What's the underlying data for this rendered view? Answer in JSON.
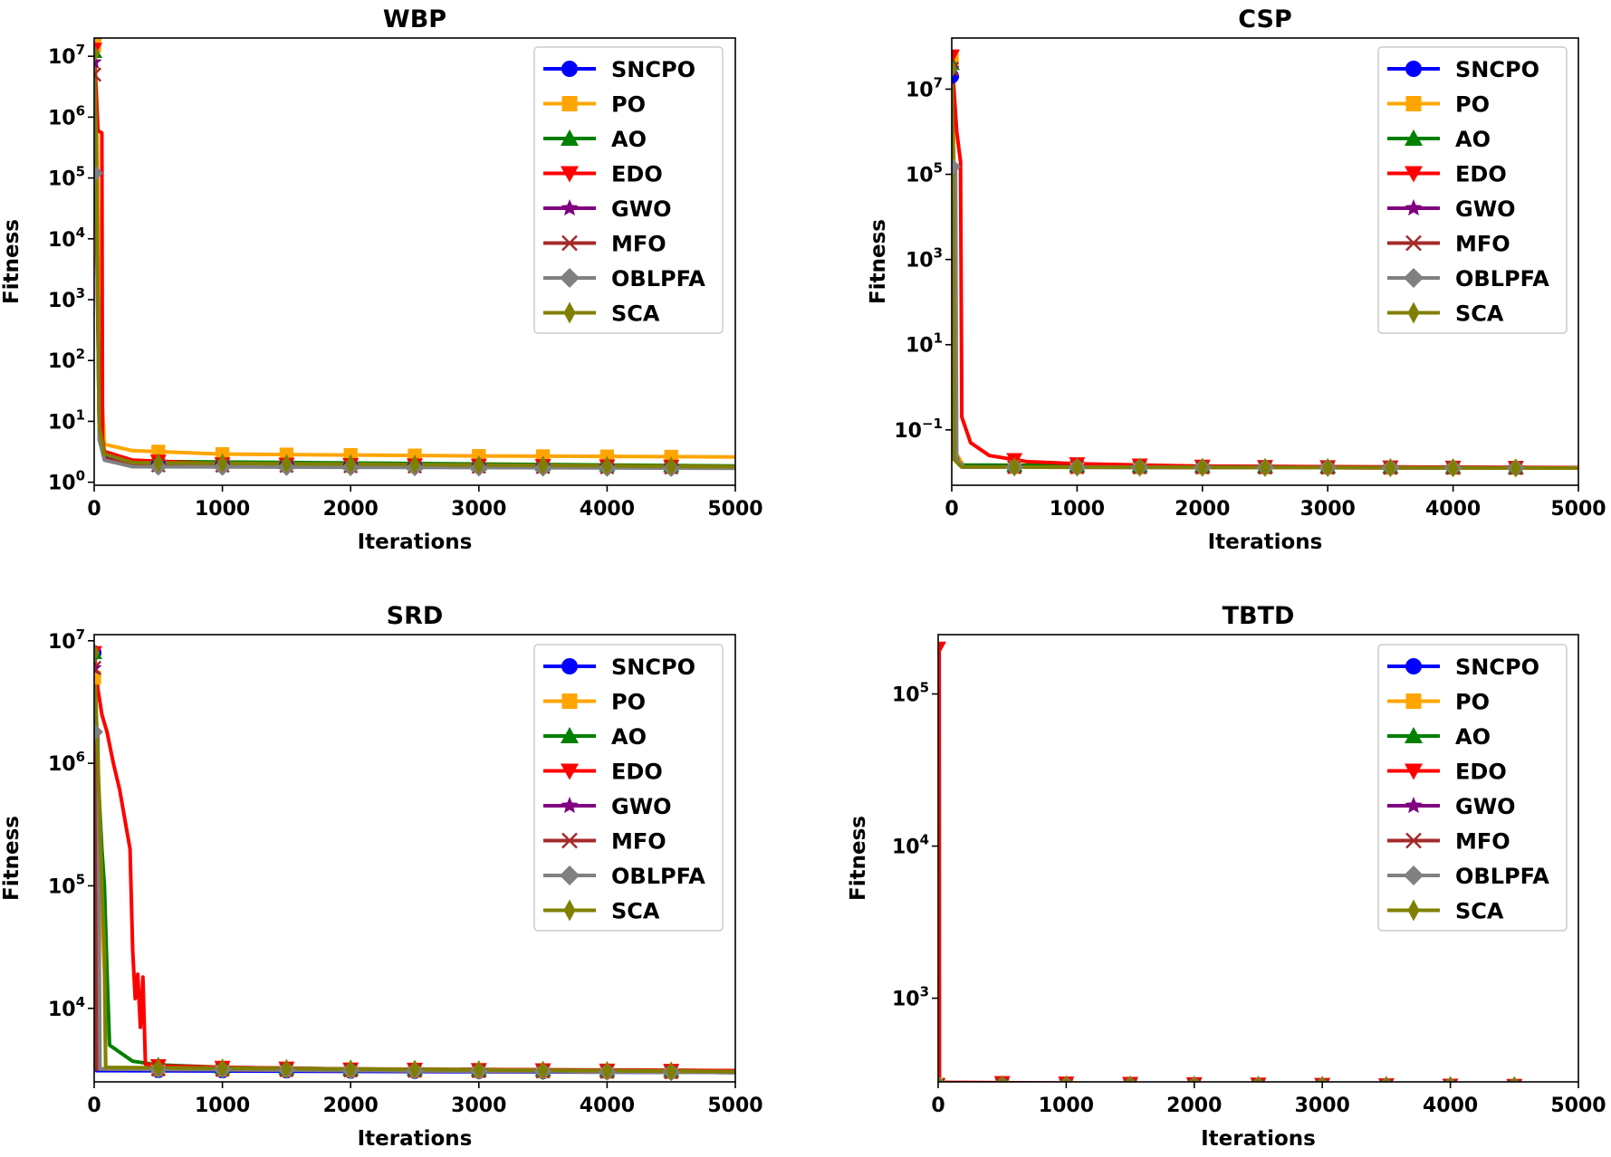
{
  "colors": {
    "SNCPO": "#0000ff",
    "PO": "#ffa500",
    "AO": "#008000",
    "EDO": "#ff0000",
    "GWO": "#800080",
    "MFO": "#a52a2a",
    "OBLPFA": "#808080",
    "SCA": "#808000"
  },
  "markers": {
    "SNCPO": "circle",
    "PO": "square",
    "AO": "triangle-up",
    "EDO": "triangle-down",
    "GWO": "star",
    "MFO": "x",
    "OBLPFA": "diamond",
    "SCA": "thin-diamond"
  },
  "chart_data": [
    {
      "type": "line",
      "title": "WBP",
      "xlabel": "Iterations",
      "ylabel": "Fitness",
      "yscale": "log",
      "xlim": [
        0,
        5000
      ],
      "ylim_log10": [
        -0.05,
        7.3
      ],
      "xticks": [
        "0",
        "1000",
        "2000",
        "3000",
        "4000",
        "5000"
      ],
      "xtick_values": [
        0,
        1000,
        2000,
        3000,
        4000,
        5000
      ],
      "yticks": [
        {
          "base": "10",
          "exp": "0",
          "v": 0
        },
        {
          "base": "10",
          "exp": "1",
          "v": 1
        },
        {
          "base": "10",
          "exp": "2",
          "v": 2
        },
        {
          "base": "10",
          "exp": "3",
          "v": 3
        },
        {
          "base": "10",
          "exp": "4",
          "v": 4
        },
        {
          "base": "10",
          "exp": "5",
          "v": 5
        },
        {
          "base": "10",
          "exp": "6",
          "v": 6
        },
        {
          "base": "10",
          "exp": "7",
          "v": 7
        }
      ],
      "legend": [
        "SNCPO",
        "PO",
        "AO",
        "EDO",
        "GWO",
        "MFO",
        "OBLPFA",
        "SCA"
      ],
      "legend_loc": "upper-right",
      "series": [
        {
          "name": "SNCPO",
          "points": [
            [
              0,
              20000000
            ],
            [
              15,
              1000000
            ],
            [
              40,
              20
            ],
            [
              80,
              2.6
            ],
            [
              300,
              2.0
            ],
            [
              5000,
              1.72
            ]
          ]
        },
        {
          "name": "PO",
          "points": [
            [
              0,
              15000000
            ],
            [
              20,
              2000000
            ],
            [
              45,
              100
            ],
            [
              80,
              4.2
            ],
            [
              300,
              3.3
            ],
            [
              1000,
              2.9
            ],
            [
              3000,
              2.7
            ],
            [
              5000,
              2.6
            ]
          ]
        },
        {
          "name": "AO",
          "points": [
            [
              0,
              12000000
            ],
            [
              15,
              300000
            ],
            [
              40,
              10
            ],
            [
              80,
              3.0
            ],
            [
              300,
              2.2
            ],
            [
              5000,
              1.85
            ]
          ]
        },
        {
          "name": "EDO",
          "points": [
            [
              0,
              13000000
            ],
            [
              30,
              600000
            ],
            [
              60,
              550000
            ],
            [
              65,
              5
            ],
            [
              80,
              3.2
            ],
            [
              300,
              2.3
            ],
            [
              1000,
              2.0
            ],
            [
              5000,
              1.8
            ]
          ]
        },
        {
          "name": "GWO",
          "points": [
            [
              0,
              8000000
            ],
            [
              15,
              100000
            ],
            [
              40,
              5
            ],
            [
              80,
              2.5
            ],
            [
              300,
              1.9
            ],
            [
              5000,
              1.73
            ]
          ]
        },
        {
          "name": "MFO",
          "points": [
            [
              0,
              5000000
            ],
            [
              15,
              100000
            ],
            [
              40,
              5
            ],
            [
              80,
              2.4
            ],
            [
              300,
              1.9
            ],
            [
              5000,
              1.73
            ]
          ]
        },
        {
          "name": "OBLPFA",
          "points": [
            [
              0,
              120000
            ],
            [
              20,
              90000
            ],
            [
              40,
              5
            ],
            [
              80,
              2.3
            ],
            [
              300,
              1.8
            ],
            [
              5000,
              1.7
            ]
          ]
        },
        {
          "name": "SCA",
          "points": [
            [
              0,
              11000000
            ],
            [
              15,
              500000
            ],
            [
              40,
              8
            ],
            [
              80,
              2.9
            ],
            [
              300,
              2.1
            ],
            [
              5000,
              1.8
            ]
          ]
        }
      ]
    },
    {
      "type": "line",
      "title": "CSP",
      "xlabel": "Iterations",
      "ylabel": "Fitness",
      "yscale": "log",
      "xlim": [
        0,
        5000
      ],
      "ylim_log10": [
        -2.3,
        8.2
      ],
      "xticks": [
        "0",
        "1000",
        "2000",
        "3000",
        "4000",
        "5000"
      ],
      "xtick_values": [
        0,
        1000,
        2000,
        3000,
        4000,
        5000
      ],
      "yticks": [
        {
          "base": "10",
          "exp": "−1",
          "v": -1
        },
        {
          "base": "10",
          "exp": "1",
          "v": 1
        },
        {
          "base": "10",
          "exp": "3",
          "v": 3
        },
        {
          "base": "10",
          "exp": "5",
          "v": 5
        },
        {
          "base": "10",
          "exp": "7",
          "v": 7
        }
      ],
      "legend": [
        "SNCPO",
        "PO",
        "AO",
        "EDO",
        "GWO",
        "MFO",
        "OBLPFA",
        "SCA"
      ],
      "legend_loc": "upper-right",
      "series": [
        {
          "name": "SNCPO",
          "points": [
            [
              0,
              20000000
            ],
            [
              10,
              100000
            ],
            [
              20,
              0.02
            ],
            [
              100,
              0.0135
            ],
            [
              5000,
              0.0127
            ]
          ]
        },
        {
          "name": "PO",
          "points": [
            [
              0,
              50000000
            ],
            [
              15,
              1000000
            ],
            [
              30,
              0.03
            ],
            [
              100,
              0.0135
            ],
            [
              5000,
              0.0127
            ]
          ]
        },
        {
          "name": "AO",
          "points": [
            [
              0,
              40000000
            ],
            [
              10,
              300000
            ],
            [
              20,
              0.04
            ],
            [
              60,
              0.015
            ],
            [
              5000,
              0.0127
            ]
          ]
        },
        {
          "name": "EDO",
          "points": [
            [
              0,
              60000000
            ],
            [
              40,
              1000000
            ],
            [
              70,
              200000
            ],
            [
              80,
              0.2
            ],
            [
              150,
              0.05
            ],
            [
              300,
              0.025
            ],
            [
              600,
              0.018
            ],
            [
              1000,
              0.016
            ],
            [
              2000,
              0.014
            ],
            [
              5000,
              0.013
            ]
          ]
        },
        {
          "name": "GWO",
          "points": [
            [
              0,
              30000000
            ],
            [
              10,
              100000
            ],
            [
              20,
              0.02
            ],
            [
              80,
              0.0135
            ],
            [
              5000,
              0.0127
            ]
          ]
        },
        {
          "name": "MFO",
          "points": [
            [
              0,
              30000000
            ],
            [
              10,
              100000
            ],
            [
              20,
              0.02
            ],
            [
              80,
              0.0135
            ],
            [
              5000,
              0.0127
            ]
          ]
        },
        {
          "name": "OBLPFA",
          "points": [
            [
              0,
              150000
            ],
            [
              30,
              120000
            ],
            [
              40,
              0.02
            ],
            [
              100,
              0.0135
            ],
            [
              5000,
              0.0127
            ]
          ]
        },
        {
          "name": "SCA",
          "points": [
            [
              0,
              30000000
            ],
            [
              10,
              100000
            ],
            [
              20,
              0.02
            ],
            [
              80,
              0.0135
            ],
            [
              5000,
              0.0127
            ]
          ]
        }
      ]
    },
    {
      "type": "line",
      "title": "SRD",
      "xlabel": "Iterations",
      "ylabel": "Fitness",
      "yscale": "log",
      "xlim": [
        0,
        5000
      ],
      "ylim_log10": [
        3.4,
        7.05
      ],
      "xticks": [
        "0",
        "1000",
        "2000",
        "3000",
        "4000",
        "5000"
      ],
      "xtick_values": [
        0,
        1000,
        2000,
        3000,
        4000,
        5000
      ],
      "yticks": [
        {
          "base": "10",
          "exp": "4",
          "v": 4
        },
        {
          "base": "10",
          "exp": "5",
          "v": 5
        },
        {
          "base": "10",
          "exp": "6",
          "v": 6
        },
        {
          "base": "10",
          "exp": "7",
          "v": 7
        }
      ],
      "legend": [
        "SNCPO",
        "PO",
        "AO",
        "EDO",
        "GWO",
        "MFO",
        "OBLPFA",
        "SCA"
      ],
      "legend_loc": "upper-right",
      "series": [
        {
          "name": "SNCPO",
          "points": [
            [
              0,
              8000000
            ],
            [
              10,
              1000000
            ],
            [
              20,
              3100
            ],
            [
              5000,
              3000
            ]
          ]
        },
        {
          "name": "PO",
          "points": [
            [
              0,
              5000000
            ],
            [
              20,
              2000000
            ],
            [
              40,
              300000
            ],
            [
              60,
              50000
            ],
            [
              80,
              20000
            ],
            [
              90,
              3200
            ],
            [
              5000,
              3000
            ]
          ]
        },
        {
          "name": "AO",
          "points": [
            [
              0,
              8000000
            ],
            [
              20,
              1000000
            ],
            [
              40,
              500000
            ],
            [
              60,
              200000
            ],
            [
              80,
              100000
            ],
            [
              100,
              20000
            ],
            [
              120,
              5000
            ],
            [
              300,
              3700
            ],
            [
              500,
              3450
            ],
            [
              1000,
              3300
            ],
            [
              2000,
              3200
            ],
            [
              5000,
              3100
            ]
          ]
        },
        {
          "name": "EDO",
          "points": [
            [
              0,
              8000000
            ],
            [
              30,
              4000000
            ],
            [
              60,
              2500000
            ],
            [
              100,
              1800000
            ],
            [
              150,
              1000000
            ],
            [
              200,
              600000
            ],
            [
              250,
              300000
            ],
            [
              280,
              200000
            ],
            [
              300,
              30000
            ],
            [
              320,
              12000
            ],
            [
              340,
              19000
            ],
            [
              360,
              7000
            ],
            [
              380,
              18000
            ],
            [
              400,
              3500
            ],
            [
              500,
              3400
            ],
            [
              1000,
              3300
            ],
            [
              2000,
              3200
            ],
            [
              5000,
              3100
            ]
          ]
        },
        {
          "name": "GWO",
          "points": [
            [
              0,
              6000000
            ],
            [
              10,
              500000
            ],
            [
              20,
              3200
            ],
            [
              5000,
              3000
            ]
          ]
        },
        {
          "name": "MFO",
          "points": [
            [
              0,
              6000000
            ],
            [
              10,
              500000
            ],
            [
              20,
              3200
            ],
            [
              5000,
              3000
            ]
          ]
        },
        {
          "name": "OBLPFA",
          "points": [
            [
              0,
              1800000
            ],
            [
              30,
              1700000
            ],
            [
              45,
              3200
            ],
            [
              5000,
              3000
            ]
          ]
        },
        {
          "name": "SCA",
          "points": [
            [
              0,
              8000000
            ],
            [
              20,
              2000000
            ],
            [
              40,
              500000
            ],
            [
              60,
              100000
            ],
            [
              80,
              30000
            ],
            [
              90,
              3300
            ],
            [
              5000,
              3050
            ]
          ]
        }
      ]
    },
    {
      "type": "line",
      "title": "TBTD",
      "xlabel": "Iterations",
      "ylabel": "Fitness",
      "yscale": "log",
      "xlim": [
        0,
        5000
      ],
      "ylim_log10": [
        2.45,
        5.39
      ],
      "xticks": [
        "0",
        "1000",
        "2000",
        "3000",
        "4000",
        "5000"
      ],
      "xtick_values": [
        0,
        1000,
        2000,
        3000,
        4000,
        5000
      ],
      "yticks": [
        {
          "base": "10",
          "exp": "3",
          "v": 3
        },
        {
          "base": "10",
          "exp": "4",
          "v": 4
        },
        {
          "base": "10",
          "exp": "5",
          "v": 5
        }
      ],
      "legend": [
        "SNCPO",
        "PO",
        "AO",
        "EDO",
        "GWO",
        "MFO",
        "OBLPFA",
        "SCA"
      ],
      "legend_loc": "upper-right",
      "series": [
        {
          "name": "SNCPO",
          "points": [
            [
              0,
              270
            ],
            [
              5000,
              265
            ]
          ]
        },
        {
          "name": "PO",
          "points": [
            [
              0,
              270
            ],
            [
              5000,
              265
            ]
          ]
        },
        {
          "name": "AO",
          "points": [
            [
              0,
              270
            ],
            [
              5000,
              265
            ]
          ]
        },
        {
          "name": "EDO",
          "points": [
            [
              0,
              200000
            ],
            [
              8,
              200000
            ],
            [
              10,
              280
            ],
            [
              5000,
              265
            ]
          ]
        },
        {
          "name": "GWO",
          "points": [
            [
              0,
              270
            ],
            [
              5000,
              265
            ]
          ]
        },
        {
          "name": "MFO",
          "points": [
            [
              0,
              270
            ],
            [
              5000,
              265
            ]
          ]
        },
        {
          "name": "OBLPFA",
          "points": [
            [
              0,
              270
            ],
            [
              5000,
              265
            ]
          ]
        },
        {
          "name": "SCA",
          "points": [
            [
              0,
              270
            ],
            [
              5000,
              265
            ]
          ]
        }
      ]
    }
  ]
}
